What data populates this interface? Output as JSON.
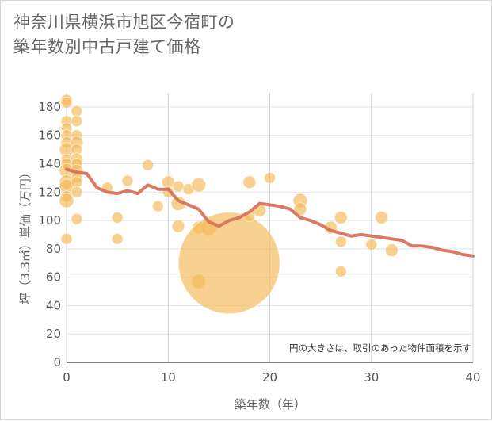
{
  "chart_data": {
    "type": "scatter",
    "title": "神奈川県横浜市旭区今宿町の\n築年数別中古戸建て価格",
    "xlabel": "築年数（年）",
    "ylabel": "坪（3.3㎡）単価（万円）",
    "note": "円の大きさは、取引のあった物件面積を示す",
    "xlim": [
      0,
      40
    ],
    "ylim": [
      0,
      190
    ],
    "xticks": [
      0,
      10,
      20,
      30,
      40
    ],
    "yticks": [
      0,
      20,
      40,
      60,
      80,
      100,
      120,
      140,
      160,
      180
    ],
    "grid": true,
    "colors": {
      "bubble": "#f5b95a",
      "line": "#d9725a"
    },
    "points": [
      {
        "x": 0,
        "y": 185,
        "s": 7
      },
      {
        "x": 0,
        "y": 183,
        "s": 7
      },
      {
        "x": 0,
        "y": 170,
        "s": 7
      },
      {
        "x": 0,
        "y": 165,
        "s": 7
      },
      {
        "x": 0,
        "y": 160,
        "s": 7
      },
      {
        "x": 0,
        "y": 155,
        "s": 7
      },
      {
        "x": 0,
        "y": 150,
        "s": 9
      },
      {
        "x": 0,
        "y": 143,
        "s": 7
      },
      {
        "x": 0,
        "y": 140,
        "s": 7
      },
      {
        "x": 0,
        "y": 135,
        "s": 9
      },
      {
        "x": 0,
        "y": 127,
        "s": 9
      },
      {
        "x": 0,
        "y": 124,
        "s": 9
      },
      {
        "x": 0,
        "y": 117,
        "s": 7
      },
      {
        "x": 0,
        "y": 114,
        "s": 9
      },
      {
        "x": 0,
        "y": 87,
        "s": 7
      },
      {
        "x": 1,
        "y": 177,
        "s": 7
      },
      {
        "x": 1,
        "y": 170,
        "s": 7
      },
      {
        "x": 1,
        "y": 160,
        "s": 7
      },
      {
        "x": 1,
        "y": 155,
        "s": 8
      },
      {
        "x": 1,
        "y": 150,
        "s": 7
      },
      {
        "x": 1,
        "y": 143,
        "s": 8
      },
      {
        "x": 1,
        "y": 140,
        "s": 7
      },
      {
        "x": 1,
        "y": 135,
        "s": 8
      },
      {
        "x": 1,
        "y": 130,
        "s": 7
      },
      {
        "x": 1,
        "y": 127,
        "s": 7
      },
      {
        "x": 1,
        "y": 120,
        "s": 7
      },
      {
        "x": 1,
        "y": 101,
        "s": 7
      },
      {
        "x": 4,
        "y": 123,
        "s": 7
      },
      {
        "x": 5,
        "y": 102,
        "s": 7
      },
      {
        "x": 5,
        "y": 87,
        "s": 7
      },
      {
        "x": 6,
        "y": 128,
        "s": 7
      },
      {
        "x": 8,
        "y": 139,
        "s": 7
      },
      {
        "x": 9,
        "y": 110,
        "s": 7
      },
      {
        "x": 10,
        "y": 127,
        "s": 8
      },
      {
        "x": 10,
        "y": 120,
        "s": 7
      },
      {
        "x": 11,
        "y": 124,
        "s": 7
      },
      {
        "x": 11,
        "y": 112,
        "s": 9
      },
      {
        "x": 11,
        "y": 96,
        "s": 8
      },
      {
        "x": 12,
        "y": 122,
        "s": 7
      },
      {
        "x": 13,
        "y": 125,
        "s": 9
      },
      {
        "x": 13,
        "y": 95,
        "s": 8
      },
      {
        "x": 13,
        "y": 57,
        "s": 9
      },
      {
        "x": 14,
        "y": 95,
        "s": 10
      },
      {
        "x": 16,
        "y": 70,
        "s": 64
      },
      {
        "x": 18,
        "y": 127,
        "s": 8
      },
      {
        "x": 18,
        "y": 103,
        "s": 7
      },
      {
        "x": 19,
        "y": 107,
        "s": 8
      },
      {
        "x": 20,
        "y": 130,
        "s": 7
      },
      {
        "x": 23,
        "y": 114,
        "s": 9
      },
      {
        "x": 23,
        "y": 108,
        "s": 8
      },
      {
        "x": 26,
        "y": 95,
        "s": 8
      },
      {
        "x": 27,
        "y": 102,
        "s": 8
      },
      {
        "x": 27,
        "y": 85,
        "s": 7
      },
      {
        "x": 27,
        "y": 64,
        "s": 7
      },
      {
        "x": 30,
        "y": 83,
        "s": 7
      },
      {
        "x": 31,
        "y": 102,
        "s": 8
      },
      {
        "x": 32,
        "y": 79,
        "s": 8
      }
    ],
    "trend": [
      {
        "x": 0,
        "y": 136
      },
      {
        "x": 1,
        "y": 134
      },
      {
        "x": 2,
        "y": 133
      },
      {
        "x": 3,
        "y": 123
      },
      {
        "x": 4,
        "y": 120
      },
      {
        "x": 5,
        "y": 119
      },
      {
        "x": 6,
        "y": 121
      },
      {
        "x": 7,
        "y": 119
      },
      {
        "x": 8,
        "y": 125
      },
      {
        "x": 9,
        "y": 122
      },
      {
        "x": 10,
        "y": 122
      },
      {
        "x": 11,
        "y": 114
      },
      {
        "x": 12,
        "y": 111
      },
      {
        "x": 13,
        "y": 108
      },
      {
        "x": 14,
        "y": 99
      },
      {
        "x": 15,
        "y": 96
      },
      {
        "x": 16,
        "y": 100
      },
      {
        "x": 17,
        "y": 102
      },
      {
        "x": 18,
        "y": 106
      },
      {
        "x": 19,
        "y": 112
      },
      {
        "x": 20,
        "y": 111
      },
      {
        "x": 21,
        "y": 110
      },
      {
        "x": 22,
        "y": 108
      },
      {
        "x": 23,
        "y": 102
      },
      {
        "x": 24,
        "y": 100
      },
      {
        "x": 25,
        "y": 97
      },
      {
        "x": 26,
        "y": 93
      },
      {
        "x": 27,
        "y": 91
      },
      {
        "x": 28,
        "y": 89
      },
      {
        "x": 29,
        "y": 90
      },
      {
        "x": 30,
        "y": 89
      },
      {
        "x": 31,
        "y": 88
      },
      {
        "x": 32,
        "y": 87
      },
      {
        "x": 33,
        "y": 86
      },
      {
        "x": 34,
        "y": 82
      },
      {
        "x": 35,
        "y": 82
      },
      {
        "x": 36,
        "y": 81
      },
      {
        "x": 37,
        "y": 79
      },
      {
        "x": 38,
        "y": 78
      },
      {
        "x": 39,
        "y": 76
      },
      {
        "x": 40,
        "y": 75
      }
    ]
  }
}
